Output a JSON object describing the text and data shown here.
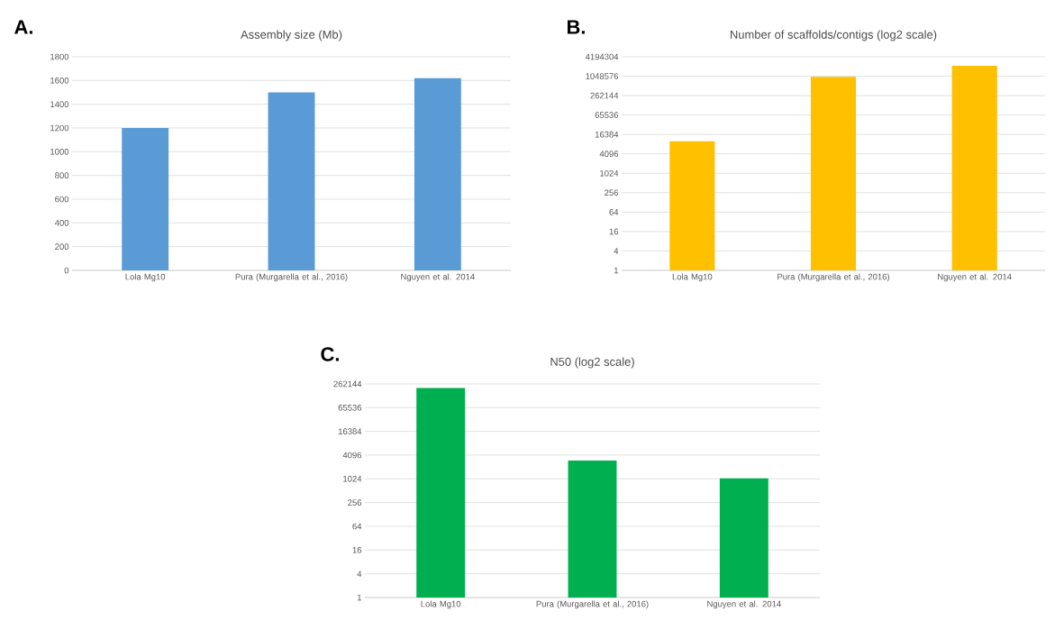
{
  "chart_data": [
    {
      "type": "bar",
      "title": "Assembly size (Mb)",
      "annotations": [
        "A."
      ],
      "categories": [
        "Lola Mg10",
        "Pura (Murgarella et al., 2016)",
        "Nguyen et al. 2014"
      ],
      "values": [
        1200,
        1500,
        1620
      ],
      "color": "#5b9bd5",
      "ylim": [
        0,
        1800
      ],
      "yticks": [
        0,
        200,
        400,
        600,
        800,
        1000,
        1200,
        1400,
        1600,
        1800
      ],
      "grid": "y"
    },
    {
      "type": "bar",
      "title": "Number of scaffolds/contigs (log2 scale)",
      "annotations": [
        "B."
      ],
      "categories": [
        "Lola Mg10",
        "Pura (Murgarella et al., 2016)",
        "Nguyen et al. 2014"
      ],
      "values": [
        10000,
        1000000,
        2200000
      ],
      "color": "#ffc000",
      "log": "y",
      "ylim": [
        1,
        4194304
      ],
      "yticks": [
        1,
        4,
        16,
        64,
        256,
        1024,
        4096,
        16384,
        65536,
        262144,
        1048576,
        4194304
      ],
      "grid": "y"
    },
    {
      "type": "bar",
      "title": "N50 (log2 scale)",
      "annotations": [
        "C."
      ],
      "categories": [
        "Lola Mg10",
        "Pura (Murgarella et al., 2016)",
        "Nguyen et al. 2014"
      ],
      "values": [
        208000,
        3000,
        1050
      ],
      "color": "#00b050",
      "log": "y",
      "ylim": [
        1,
        262144
      ],
      "yticks": [
        1,
        4,
        16,
        64,
        256,
        1024,
        4096,
        16384,
        65536,
        262144
      ],
      "grid": "y"
    }
  ]
}
